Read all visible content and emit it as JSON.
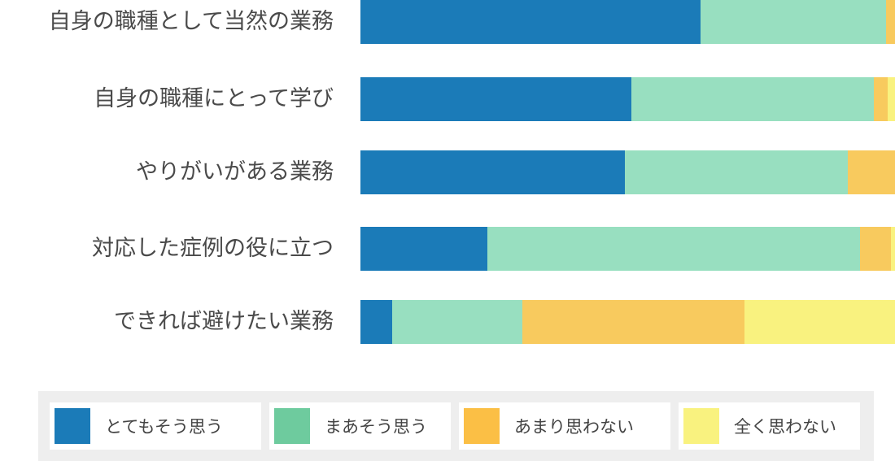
{
  "chart_data": {
    "type": "bar",
    "orientation": "horizontal",
    "stacked": true,
    "percent": true,
    "categories": [
      "自身の職種として当然の業務",
      "自身の職種にとって学び",
      "やりがいがある業務",
      "対応した症例の役に立つ",
      "できれば避けたい業務"
    ],
    "series": [
      {
        "name": "とてもそう思う",
        "color": "#1b7bb8",
        "values": [
          63.6,
          50.7,
          49.5,
          23.7,
          6.0
        ]
      },
      {
        "name": "まあそう思う",
        "color": "#98dfc0",
        "values": [
          34.8,
          45.3,
          41.7,
          69.7,
          24.3
        ]
      },
      {
        "name": "あまり思わない",
        "color": "#f8ca5e",
        "values": [
          1.6,
          2.7,
          8.8,
          5.8,
          41.6
        ]
      },
      {
        "name": "全く思わない",
        "color": "#f9f27f",
        "values": [
          0.0,
          1.3,
          0.0,
          0.8,
          28.1
        ]
      }
    ],
    "xlim": [
      0,
      100
    ],
    "grid": false,
    "legend": "bottom"
  },
  "legend_colors": [
    "#1b7bb8",
    "#6ecb9e",
    "#fbbf45",
    "#f9f27f"
  ]
}
